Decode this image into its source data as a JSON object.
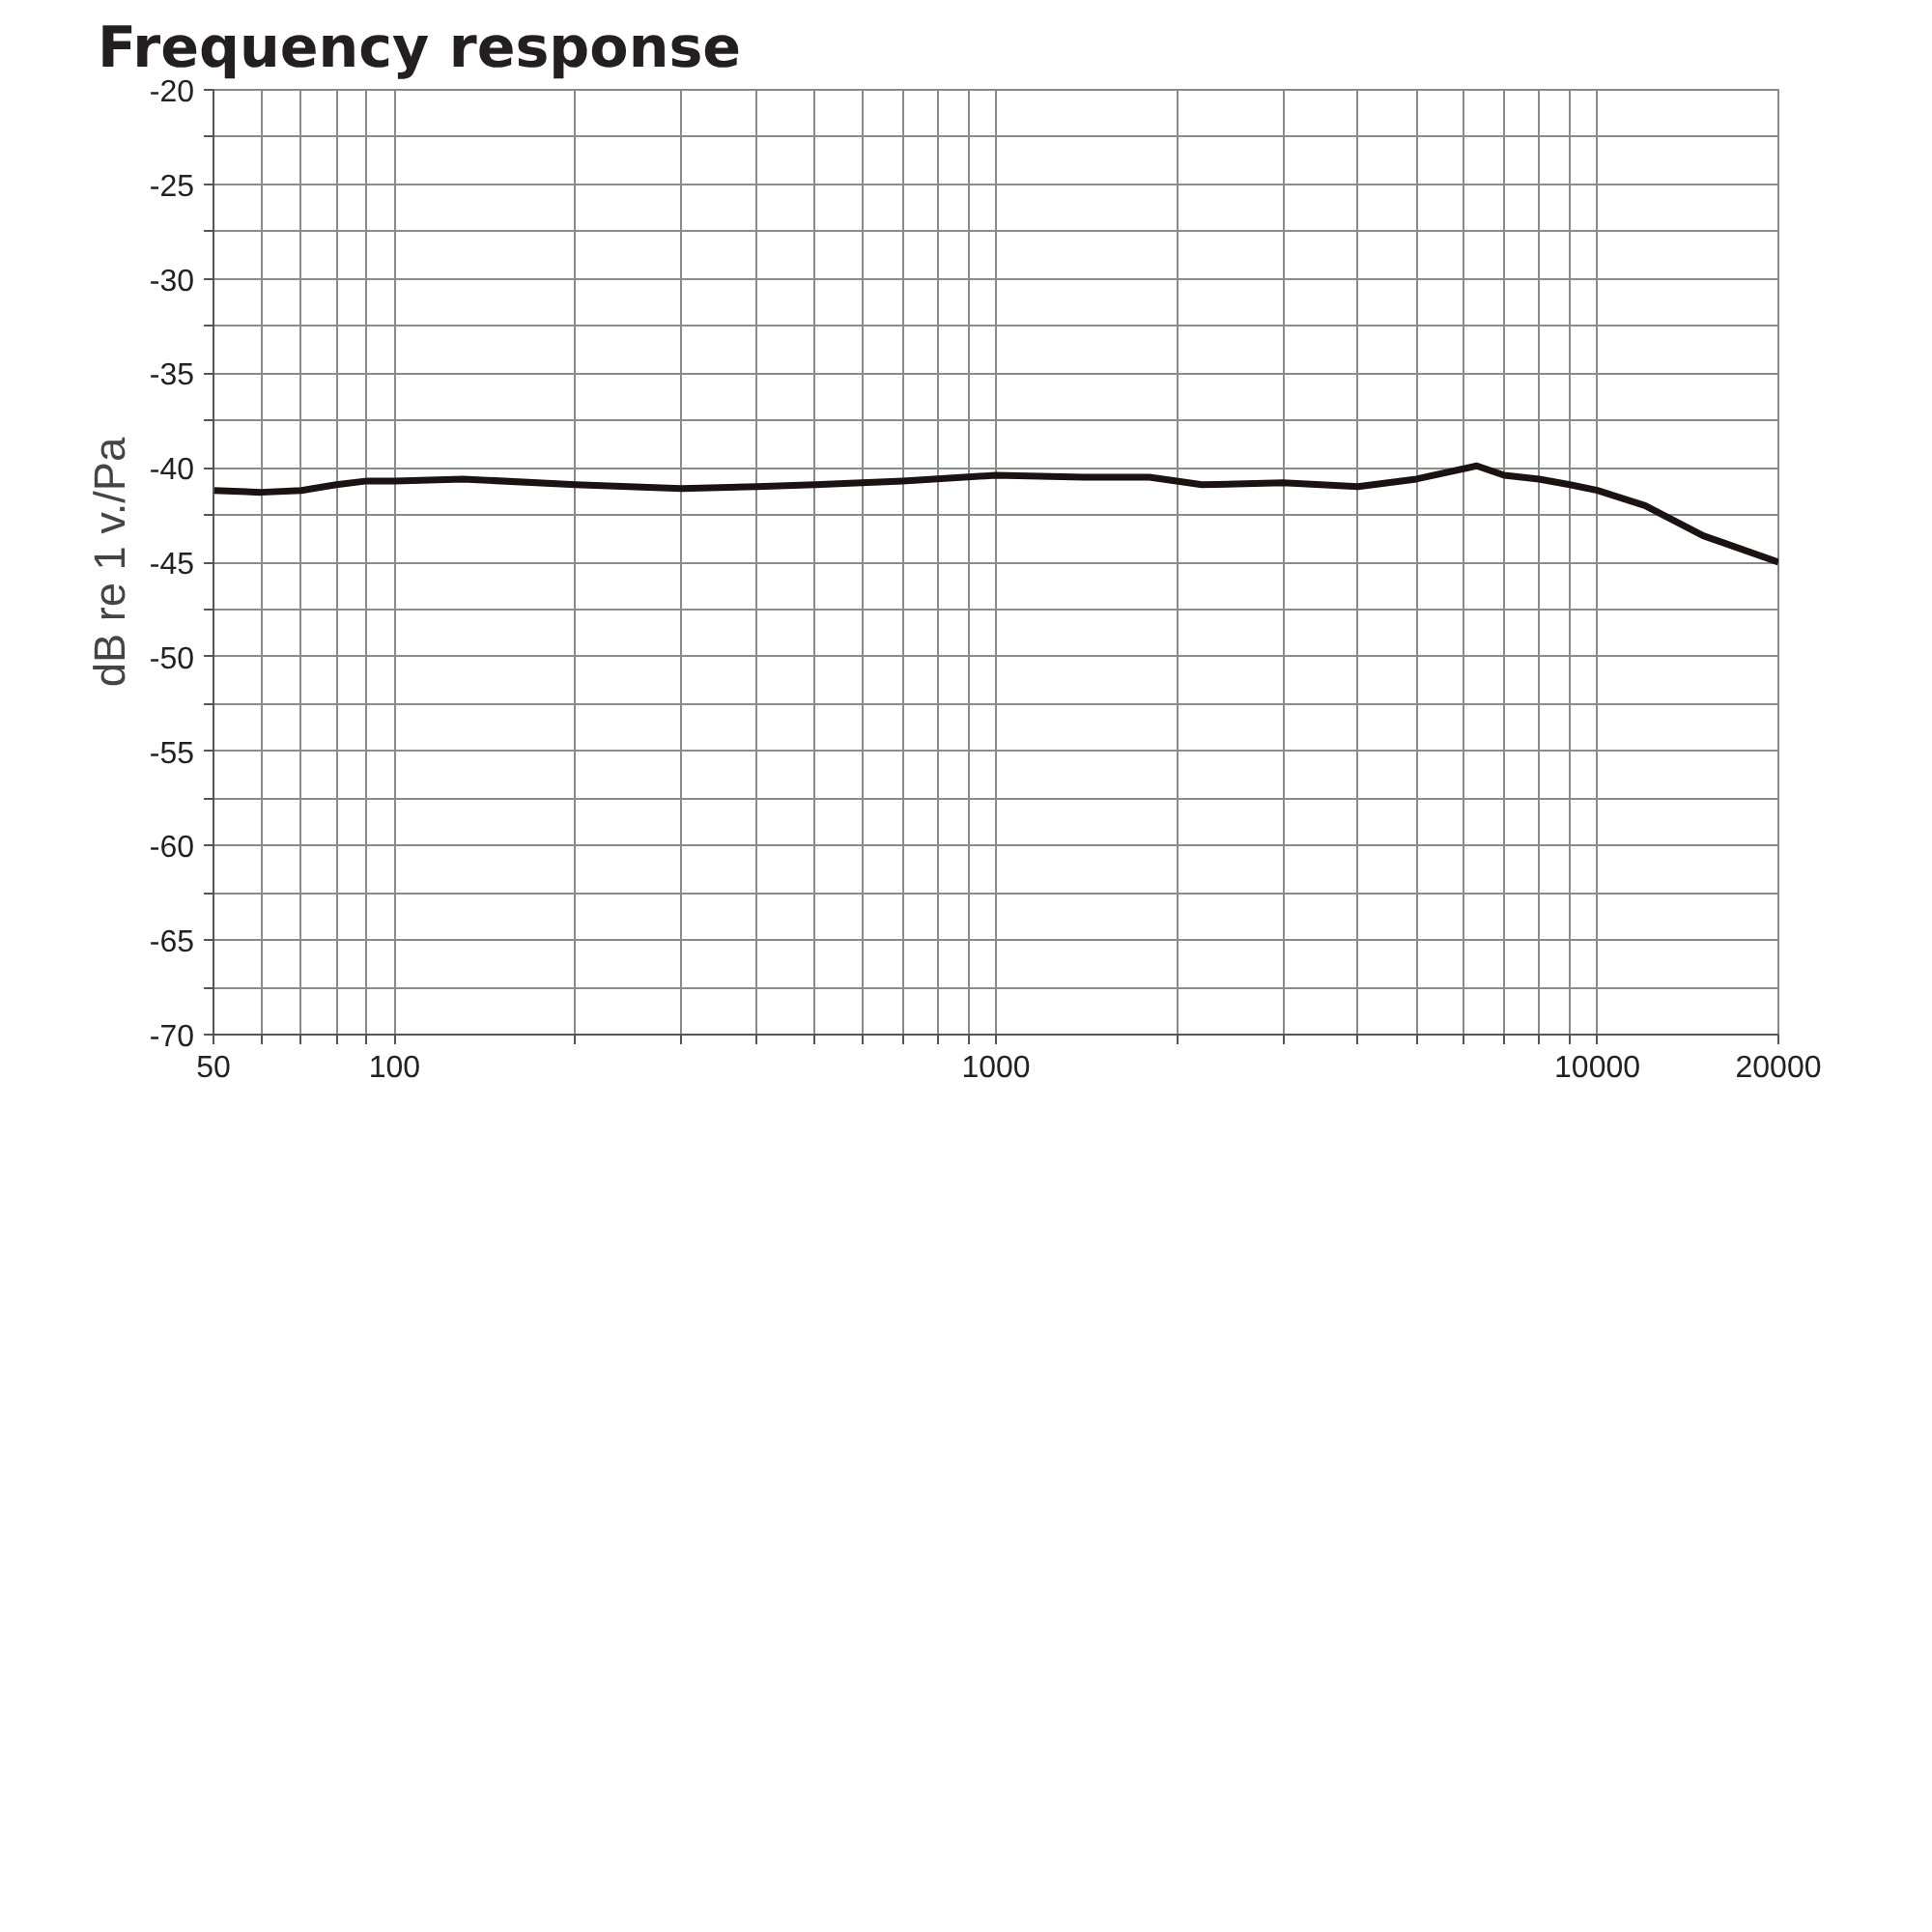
{
  "chart_data": {
    "type": "line",
    "title": "Frequency response",
    "ylabel": "dB re 1 v./Pa",
    "log": "x",
    "x": [
      50,
      60,
      70,
      80,
      90,
      100,
      130,
      200,
      300,
      400,
      500,
      700,
      1000,
      1400,
      1800,
      2200,
      3000,
      4000,
      5000,
      6300,
      7000,
      8000,
      9000,
      10000,
      12000,
      15000,
      20000
    ],
    "series": [
      {
        "color": "#1a1311",
        "values": [
          -41.2,
          -41.3,
          -41.2,
          -40.9,
          -40.7,
          -40.7,
          -40.6,
          -40.9,
          -41.1,
          -41.0,
          -40.9,
          -40.7,
          -40.4,
          -40.5,
          -40.5,
          -40.9,
          -40.8,
          -41.0,
          -40.6,
          -39.9,
          -40.4,
          -40.6,
          -40.9,
          -41.2,
          -42.0,
          -43.6,
          -45.0
        ]
      }
    ],
    "xlim": [
      50,
      20000
    ],
    "ylim": [
      -70,
      -20
    ],
    "xticks": [
      50,
      {
        "value": 60,
        "label": null
      },
      {
        "value": 70,
        "label": null
      },
      {
        "value": 80,
        "label": null
      },
      {
        "value": 90,
        "label": null
      },
      100,
      {
        "value": 200,
        "label": null
      },
      {
        "value": 300,
        "label": null
      },
      {
        "value": 400,
        "label": null
      },
      {
        "value": 500,
        "label": null
      },
      {
        "value": 600,
        "label": null
      },
      {
        "value": 700,
        "label": null
      },
      {
        "value": 800,
        "label": null
      },
      {
        "value": 900,
        "label": null
      },
      1000,
      {
        "value": 2000,
        "label": null
      },
      {
        "value": 3000,
        "label": null
      },
      {
        "value": 4000,
        "label": null
      },
      {
        "value": 5000,
        "label": null
      },
      {
        "value": 6000,
        "label": null
      },
      {
        "value": 7000,
        "label": null
      },
      {
        "value": 8000,
        "label": null
      },
      {
        "value": 9000,
        "label": null
      },
      10000,
      20000
    ],
    "yticks": [
      -70,
      {
        "value": -67.5,
        "label": null
      },
      -65,
      {
        "value": -62.5,
        "label": null
      },
      -60,
      {
        "value": -57.5,
        "label": null
      },
      -55,
      {
        "value": -52.5,
        "label": null
      },
      -50,
      {
        "value": -47.5,
        "label": null
      },
      -45,
      {
        "value": -42.5,
        "label": null
      },
      -40,
      {
        "value": -37.5,
        "label": null
      },
      -35,
      {
        "value": -32.5,
        "label": null
      },
      -30,
      {
        "value": -27.5,
        "label": null
      },
      -25,
      {
        "value": -22.5,
        "label": null
      },
      -20
    ],
    "grid": true,
    "line_style": "solid"
  }
}
